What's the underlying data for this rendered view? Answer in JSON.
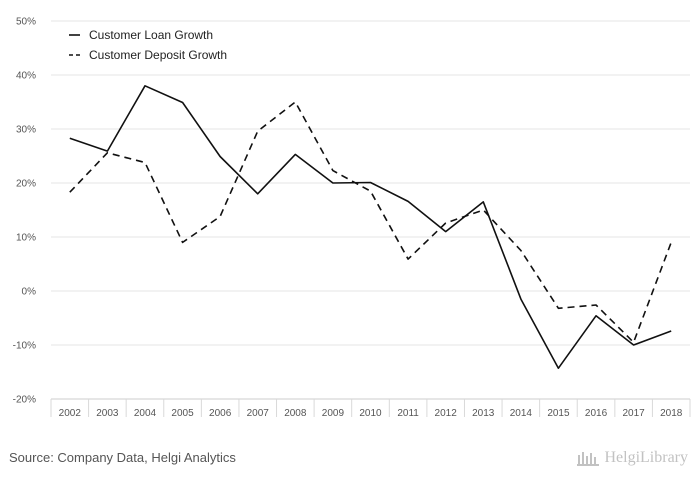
{
  "chart_data": {
    "type": "line",
    "x": [
      "2002",
      "2003",
      "2004",
      "2005",
      "2006",
      "2007",
      "2008",
      "2009",
      "2010",
      "2011",
      "2012",
      "2013",
      "2014",
      "2015",
      "2016",
      "2017",
      "2018"
    ],
    "series": [
      {
        "name": "Customer Loan Growth",
        "style": "solid",
        "color": "#111111",
        "values": [
          28.3,
          25.9,
          38.0,
          34.9,
          24.9,
          18.0,
          25.3,
          20.0,
          20.1,
          16.6,
          11.0,
          16.5,
          -1.5,
          -14.3,
          -4.6,
          -10.0,
          -7.4
        ]
      },
      {
        "name": "Customer Deposit Growth",
        "style": "dashed",
        "color": "#111111",
        "values": [
          18.3,
          25.6,
          23.8,
          9.0,
          13.8,
          29.6,
          35.0,
          22.3,
          18.5,
          5.9,
          12.6,
          15.0,
          7.5,
          -3.2,
          -2.6,
          -9.5,
          9.0
        ]
      }
    ],
    "yticks": [
      "50%",
      "40%",
      "30%",
      "20%",
      "10%",
      "0%",
      "-10%",
      "-20%"
    ],
    "ylim": [
      -20,
      50
    ],
    "grid": true,
    "legend_position": "top-left"
  },
  "footer": {
    "source": "Source: Company Data, Helgi Analytics",
    "brand": "HelgiLibrary"
  }
}
